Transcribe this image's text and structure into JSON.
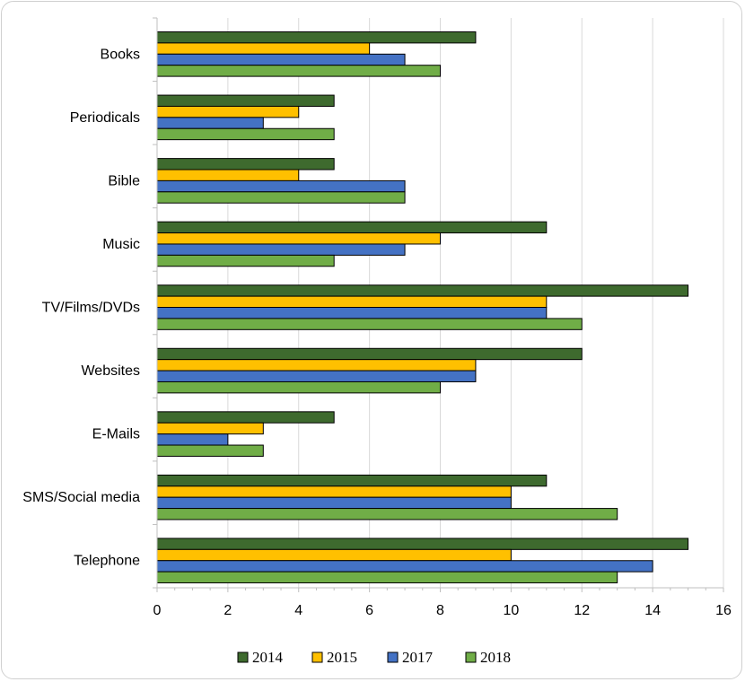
{
  "chart_data": {
    "type": "bar",
    "orientation": "horizontal",
    "title": "",
    "xlabel": "",
    "ylabel": "",
    "xlim": [
      0,
      16
    ],
    "x_ticks": [
      0,
      2,
      4,
      6,
      8,
      10,
      12,
      14,
      16
    ],
    "grid": true,
    "legend_position": "bottom",
    "categories": [
      "Books",
      "Periodicals",
      "Bible",
      "Music",
      "TV/Films/DVDs",
      "Websites",
      "E-Mails",
      "SMS/Social media",
      "Telephone"
    ],
    "series": [
      {
        "name": "2014",
        "color": "#3e6a2e",
        "values": [
          9,
          5,
          5,
          11,
          15,
          12,
          5,
          11,
          15
        ]
      },
      {
        "name": "2015",
        "color": "#ffc000",
        "values": [
          6,
          4,
          4,
          8,
          11,
          9,
          3,
          10,
          10
        ]
      },
      {
        "name": "2017",
        "color": "#4472c4",
        "values": [
          7,
          3,
          7,
          7,
          11,
          9,
          2,
          10,
          14
        ]
      },
      {
        "name": "2018",
        "color": "#70ad47",
        "values": [
          8,
          5,
          7,
          5,
          12,
          8,
          3,
          13,
          13
        ]
      }
    ]
  }
}
